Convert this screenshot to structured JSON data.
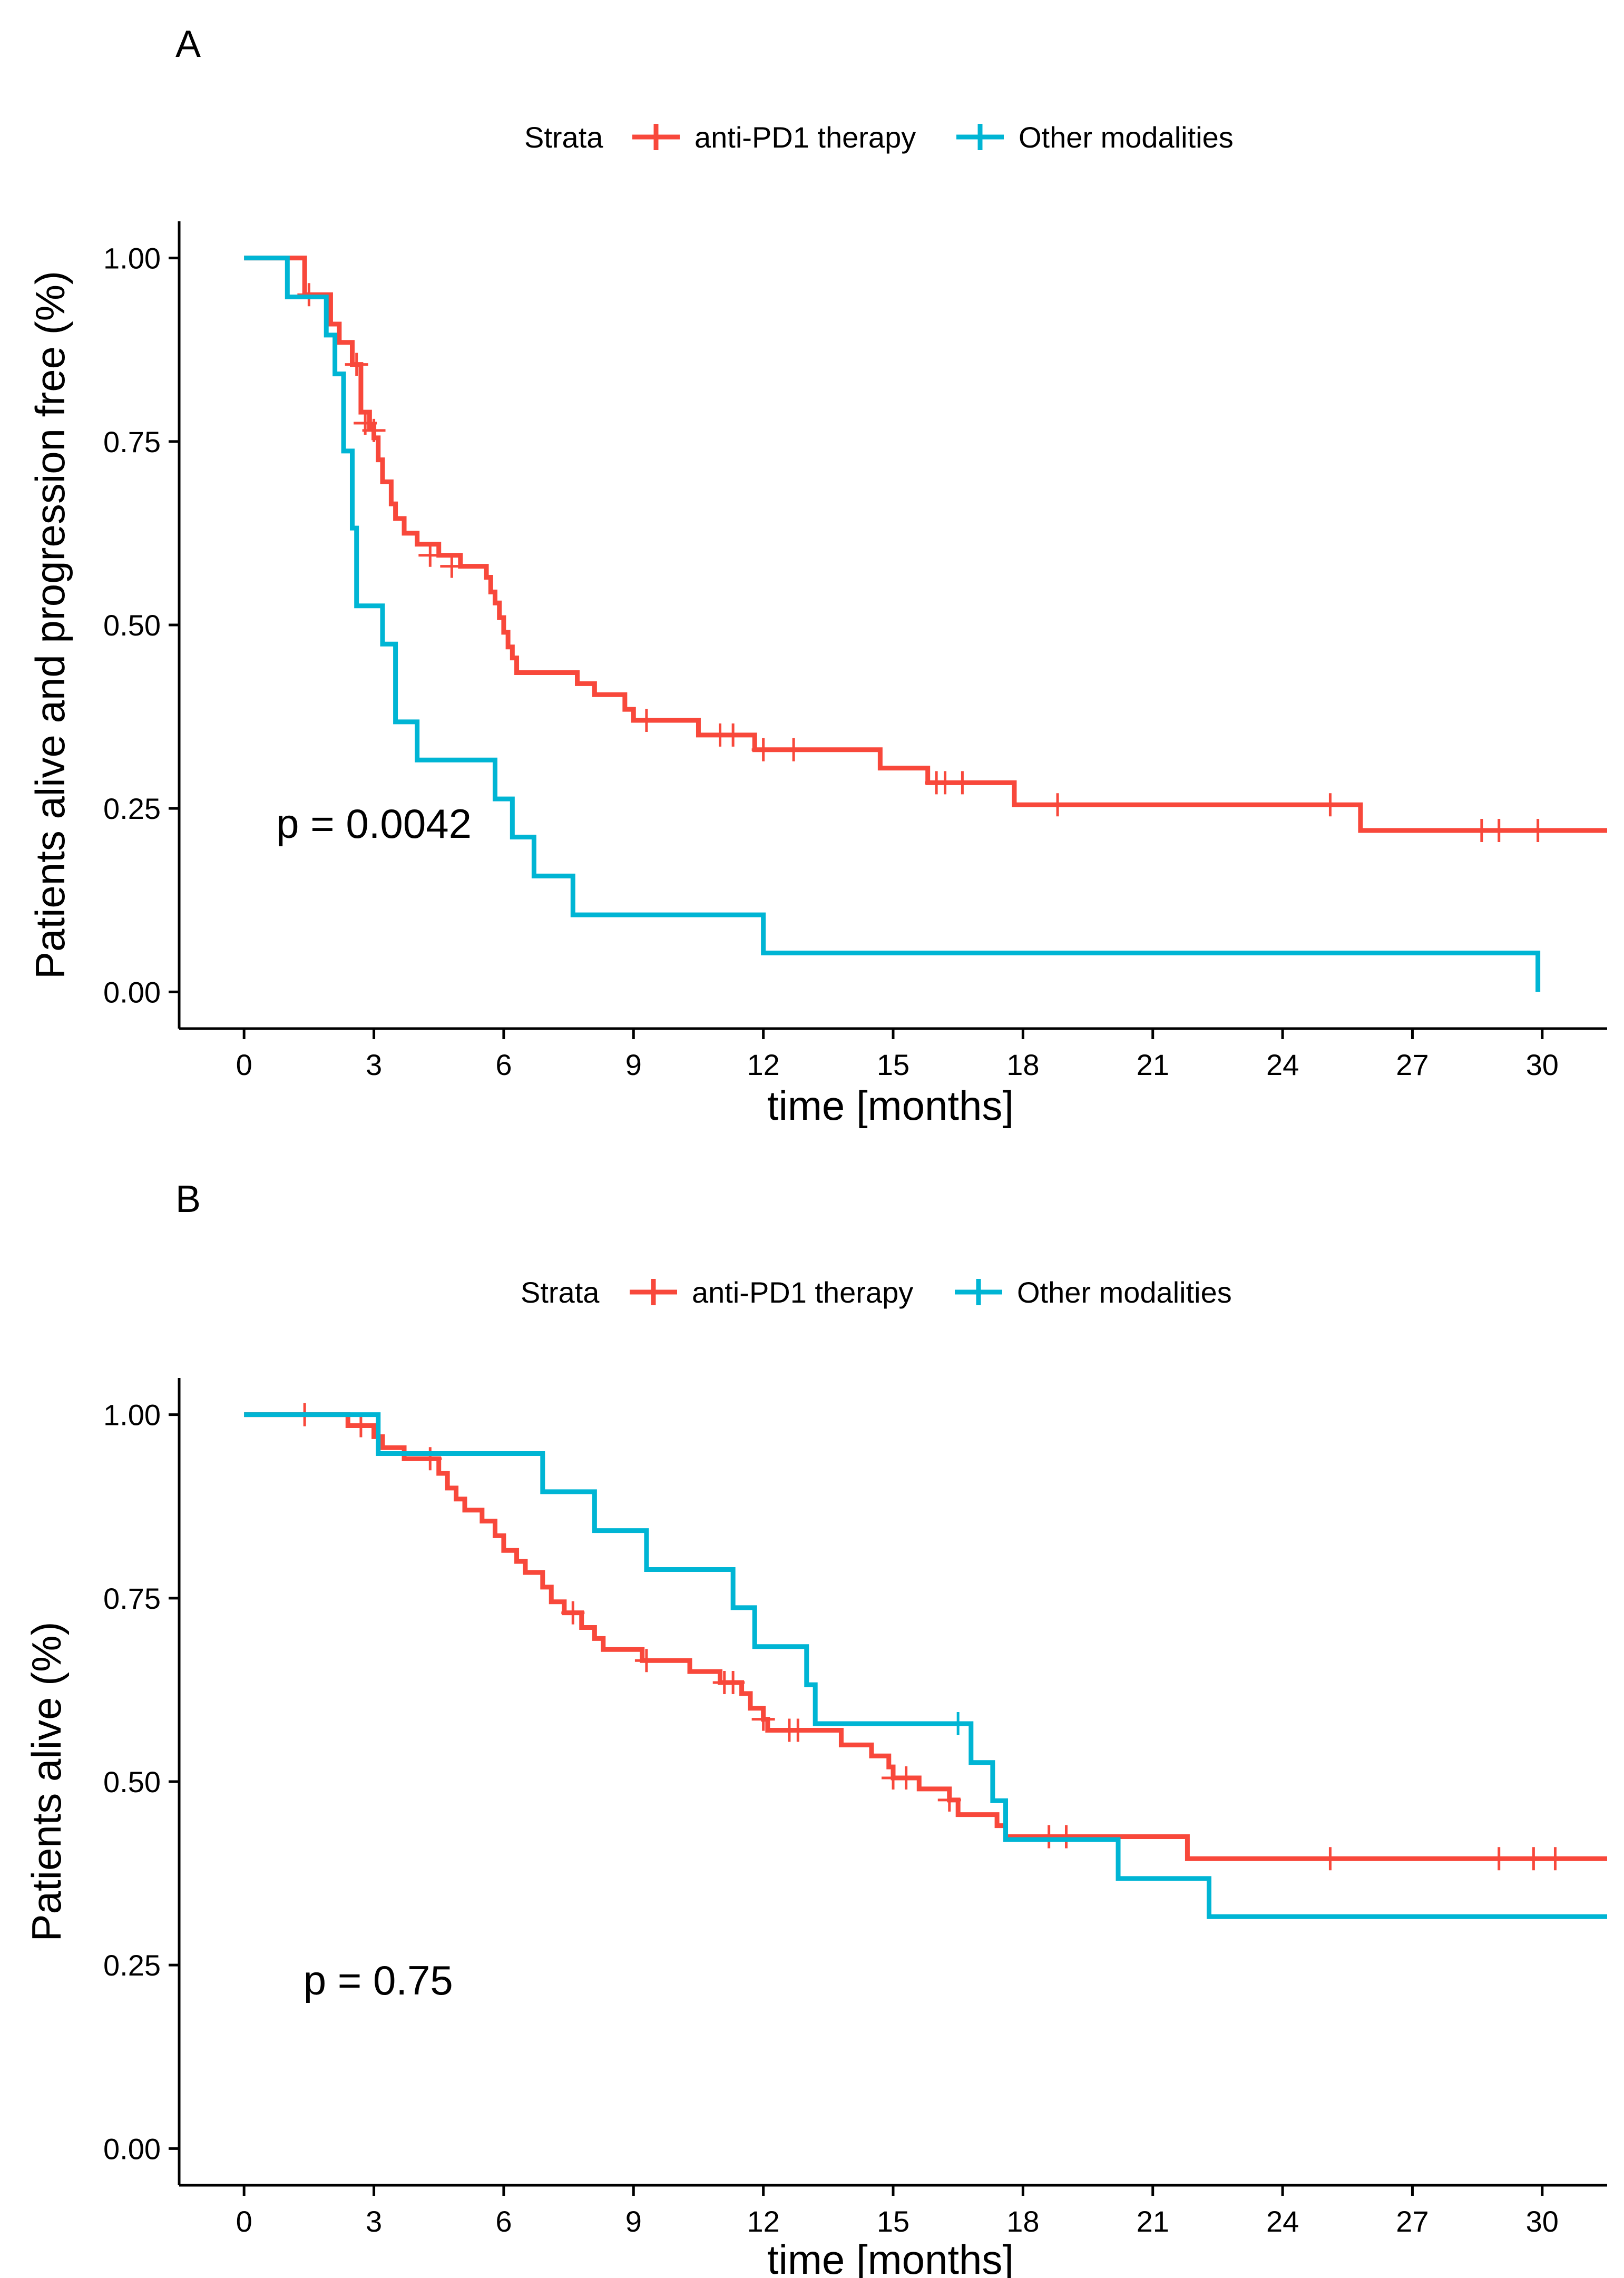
{
  "colors": {
    "anti_pd1": "#F8483B",
    "other": "#00B5D4",
    "axis": "#000000",
    "background": "#FFFFFF"
  },
  "chart_data": [
    {
      "type": "line",
      "subtype": "kaplan-meier",
      "panel_label": "A",
      "legend": {
        "title": "Strata",
        "position": "top",
        "entries": [
          "anti-PD1 therapy",
          "Other modalities"
        ]
      },
      "xlabel": "time [months]",
      "ylabel": "Patients alive and progression free (%)",
      "xlim": [
        -1.5,
        31.5
      ],
      "ylim": [
        -0.05,
        1.05
      ],
      "x_ticks": [
        0,
        3,
        6,
        9,
        12,
        15,
        18,
        21,
        24,
        27,
        30
      ],
      "y_ticks": [
        0.0,
        0.25,
        0.5,
        0.75,
        1.0
      ],
      "y_tick_labels": [
        "0.00",
        "0.25",
        "0.50",
        "0.75",
        "1.00"
      ],
      "annotation": {
        "text": "p = 0.0042",
        "x": 3.0,
        "y": 0.21
      },
      "series": [
        {
          "name": "anti-PD1 therapy",
          "color": "#F8483B",
          "steps": [
            [
              0,
              1.0
            ],
            [
              1.4,
              0.95
            ],
            [
              2.0,
              0.91
            ],
            [
              2.2,
              0.885
            ],
            [
              2.5,
              0.855
            ],
            [
              2.7,
              0.79
            ],
            [
              2.9,
              0.77
            ],
            [
              3.0,
              0.755
            ],
            [
              3.1,
              0.725
            ],
            [
              3.2,
              0.695
            ],
            [
              3.4,
              0.665
            ],
            [
              3.5,
              0.645
            ],
            [
              3.7,
              0.625
            ],
            [
              4.0,
              0.61
            ],
            [
              4.5,
              0.595
            ],
            [
              5.0,
              0.58
            ],
            [
              5.6,
              0.565
            ],
            [
              5.7,
              0.545
            ],
            [
              5.8,
              0.53
            ],
            [
              5.9,
              0.51
            ],
            [
              6.0,
              0.49
            ],
            [
              6.1,
              0.47
            ],
            [
              6.2,
              0.455
            ],
            [
              6.3,
              0.435
            ],
            [
              7.7,
              0.42
            ],
            [
              8.1,
              0.405
            ],
            [
              8.8,
              0.385
            ],
            [
              9.0,
              0.37
            ],
            [
              10.5,
              0.35
            ],
            [
              11.8,
              0.33
            ],
            [
              14.7,
              0.305
            ],
            [
              15.8,
              0.285
            ],
            [
              17.8,
              0.255
            ],
            [
              25.8,
              0.22
            ],
            [
              31.5,
              0.22
            ]
          ],
          "end_x": 31.5,
          "censors": [
            [
              1.5,
              0.95
            ],
            [
              2.6,
              0.855
            ],
            [
              2.8,
              0.775
            ],
            [
              3.0,
              0.765
            ],
            [
              4.3,
              0.595
            ],
            [
              4.8,
              0.58
            ],
            [
              9.3,
              0.37
            ],
            [
              11.0,
              0.35
            ],
            [
              11.3,
              0.35
            ],
            [
              12.0,
              0.33
            ],
            [
              12.7,
              0.33
            ],
            [
              16.0,
              0.285
            ],
            [
              16.2,
              0.285
            ],
            [
              16.6,
              0.285
            ],
            [
              18.8,
              0.255
            ],
            [
              25.1,
              0.255
            ],
            [
              28.6,
              0.22
            ],
            [
              29.0,
              0.22
            ],
            [
              29.9,
              0.22
            ]
          ]
        },
        {
          "name": "Other modalities",
          "color": "#00B5D4",
          "steps": [
            [
              0,
              1.0
            ],
            [
              1.0,
              0.947
            ],
            [
              1.9,
              0.895
            ],
            [
              2.1,
              0.842
            ],
            [
              2.3,
              0.737
            ],
            [
              2.5,
              0.632
            ],
            [
              2.6,
              0.526
            ],
            [
              3.2,
              0.474
            ],
            [
              3.5,
              0.368
            ],
            [
              4.0,
              0.316
            ],
            [
              5.8,
              0.263
            ],
            [
              6.2,
              0.211
            ],
            [
              6.7,
              0.158
            ],
            [
              7.6,
              0.105
            ],
            [
              12.0,
              0.053
            ],
            [
              29.9,
              0.0
            ]
          ],
          "end_x": 29.9,
          "censors": []
        }
      ]
    },
    {
      "type": "line",
      "subtype": "kaplan-meier",
      "panel_label": "B",
      "legend": {
        "title": "Strata",
        "position": "top",
        "entries": [
          "anti-PD1 therapy",
          "Other modalities"
        ]
      },
      "xlabel": "time [months]",
      "ylabel": "Patients alive (%)",
      "xlim": [
        -1.5,
        31.5
      ],
      "ylim": [
        -0.05,
        1.05
      ],
      "x_ticks": [
        0,
        3,
        6,
        9,
        12,
        15,
        18,
        21,
        24,
        27,
        30
      ],
      "y_ticks": [
        0.0,
        0.25,
        0.5,
        0.75,
        1.0
      ],
      "y_tick_labels": [
        "0.00",
        "0.25",
        "0.50",
        "0.75",
        "1.00"
      ],
      "annotation": {
        "text": "p = 0.75",
        "x": 3.1,
        "y": 0.21
      },
      "series": [
        {
          "name": "anti-PD1 therapy",
          "color": "#F8483B",
          "steps": [
            [
              0,
              1.0
            ],
            [
              2.4,
              0.985
            ],
            [
              3.0,
              0.97
            ],
            [
              3.2,
              0.955
            ],
            [
              3.7,
              0.94
            ],
            [
              4.5,
              0.92
            ],
            [
              4.7,
              0.9
            ],
            [
              4.9,
              0.885
            ],
            [
              5.1,
              0.87
            ],
            [
              5.5,
              0.855
            ],
            [
              5.8,
              0.835
            ],
            [
              6.0,
              0.815
            ],
            [
              6.3,
              0.8
            ],
            [
              6.5,
              0.785
            ],
            [
              6.9,
              0.765
            ],
            [
              7.1,
              0.745
            ],
            [
              7.4,
              0.73
            ],
            [
              7.8,
              0.71
            ],
            [
              8.1,
              0.695
            ],
            [
              8.3,
              0.68
            ],
            [
              9.2,
              0.665
            ],
            [
              10.3,
              0.65
            ],
            [
              11.0,
              0.635
            ],
            [
              11.5,
              0.62
            ],
            [
              11.7,
              0.6
            ],
            [
              12.0,
              0.585
            ],
            [
              12.1,
              0.57
            ],
            [
              13.8,
              0.55
            ],
            [
              14.5,
              0.535
            ],
            [
              14.9,
              0.52
            ],
            [
              15.0,
              0.505
            ],
            [
              15.6,
              0.49
            ],
            [
              16.3,
              0.475
            ],
            [
              16.5,
              0.455
            ],
            [
              17.4,
              0.44
            ],
            [
              17.6,
              0.425
            ],
            [
              21.8,
              0.395
            ],
            [
              31.5,
              0.395
            ]
          ],
          "end_x": 31.5,
          "censors": [
            [
              1.4,
              1.0
            ],
            [
              2.7,
              0.985
            ],
            [
              4.3,
              0.94
            ],
            [
              7.6,
              0.73
            ],
            [
              9.3,
              0.665
            ],
            [
              11.1,
              0.635
            ],
            [
              11.3,
              0.635
            ],
            [
              12.0,
              0.585
            ],
            [
              12.6,
              0.57
            ],
            [
              12.8,
              0.57
            ],
            [
              15.0,
              0.505
            ],
            [
              15.3,
              0.505
            ],
            [
              16.3,
              0.475
            ],
            [
              18.6,
              0.425
            ],
            [
              19.0,
              0.425
            ],
            [
              25.1,
              0.395
            ],
            [
              29.0,
              0.395
            ],
            [
              29.8,
              0.395
            ],
            [
              30.3,
              0.395
            ]
          ]
        },
        {
          "name": "Other modalities",
          "color": "#00B5D4",
          "steps": [
            [
              0,
              1.0
            ],
            [
              3.1,
              0.947
            ],
            [
              6.9,
              0.895
            ],
            [
              8.1,
              0.842
            ],
            [
              9.3,
              0.789
            ],
            [
              11.3,
              0.737
            ],
            [
              11.8,
              0.684
            ],
            [
              13.0,
              0.632
            ],
            [
              13.2,
              0.579
            ],
            [
              16.8,
              0.526
            ],
            [
              17.3,
              0.474
            ],
            [
              17.6,
              0.421
            ],
            [
              20.2,
              0.368
            ],
            [
              22.3,
              0.316
            ],
            [
              31.5,
              0.316
            ]
          ],
          "end_x": 31.5,
          "censors": [
            [
              16.5,
              0.579
            ]
          ]
        }
      ]
    }
  ]
}
